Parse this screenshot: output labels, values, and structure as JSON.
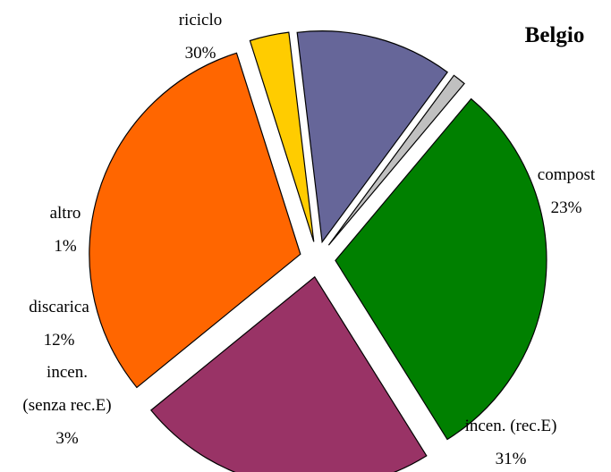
{
  "chart_data": {
    "type": "pie",
    "title": "Belgio",
    "slices": [
      {
        "name": "compost",
        "value": 23,
        "label": "23%",
        "color": "#993366"
      },
      {
        "name": "incen. (rec.E)",
        "value": 31,
        "label": "31%",
        "color": "#ff6600"
      },
      {
        "name_lines": [
          "incen.",
          "(senza rec.E)"
        ],
        "name": "incen. (senza rec.E)",
        "value": 3,
        "label": "3%",
        "color": "#ffcc00"
      },
      {
        "name": "discarica",
        "value": 12,
        "label": "12%",
        "color": "#666699"
      },
      {
        "name": "altro",
        "value": 1,
        "label": "1%",
        "color": "#c0c0c0"
      },
      {
        "name": "riciclo",
        "value": 30,
        "label": "30%",
        "color": "#008000"
      }
    ],
    "legend": "none",
    "data_labels": "category and percent"
  }
}
